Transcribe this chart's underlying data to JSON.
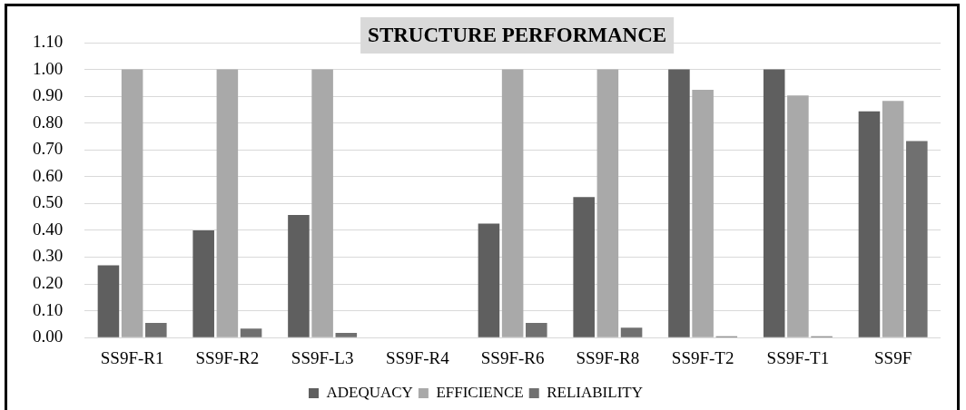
{
  "chart_data": {
    "type": "bar",
    "title": "STRUCTURE PERFORMANCE",
    "categories": [
      "SS9F-R1",
      "SS9F-R2",
      "SS9F-L3",
      "SS9F-R4",
      "SS9F-R6",
      "SS9F-R8",
      "SS9F-T2",
      "SS9F-T1",
      "SS9F"
    ],
    "series": [
      {
        "name": "ADEQUACY",
        "color": "#5f5f5f",
        "values": [
          0.27,
          0.4,
          0.457,
          0,
          0.425,
          0.524,
          1.0,
          1.0,
          0.844
        ]
      },
      {
        "name": "EFFICIENCE",
        "color": "#a9a9a9",
        "values": [
          1.0,
          1.0,
          1.0,
          0,
          1.0,
          1.0,
          0.924,
          0.903,
          0.883
        ]
      },
      {
        "name": "RELIABILITY",
        "color": "#707070",
        "values": [
          0.055,
          0.034,
          0.018,
          0,
          0.055,
          0.037,
          0.005,
          0.005,
          0.733
        ]
      }
    ],
    "ylim": [
      0,
      1.1
    ],
    "yticks": [
      {
        "value": 0,
        "label": "0.00"
      },
      {
        "value": 0.1,
        "label": "0.10"
      },
      {
        "value": 0.2,
        "label": "0.20"
      },
      {
        "value": 0.3,
        "label": "0.30"
      },
      {
        "value": 0.4,
        "label": "0.40"
      },
      {
        "value": 0.5,
        "label": "0.50"
      },
      {
        "value": 0.6,
        "label": "0.60"
      },
      {
        "value": 0.7,
        "label": "0.70"
      },
      {
        "value": 0.8,
        "label": "0.80"
      },
      {
        "value": 0.9,
        "label": "0.90"
      },
      {
        "value": 1.0,
        "label": "1.00"
      },
      {
        "value": 1.1,
        "label": "1.10"
      }
    ],
    "grid": "y",
    "legend": "bottom"
  }
}
